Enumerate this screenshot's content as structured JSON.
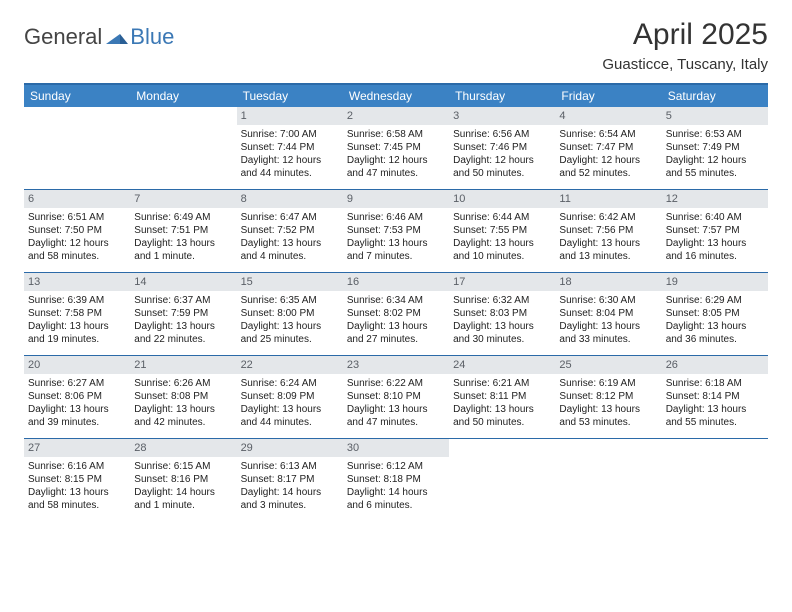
{
  "logo": {
    "part1": "General",
    "part2": "Blue"
  },
  "title": "April 2025",
  "subtitle": "Guasticce, Tuscany, Italy",
  "colors": {
    "header_bg": "#3b82c4",
    "rule": "#2b6aa8",
    "daynum_bg": "#e4e7ea",
    "logo_blue": "#3b78b5"
  },
  "dow": [
    "Sunday",
    "Monday",
    "Tuesday",
    "Wednesday",
    "Thursday",
    "Friday",
    "Saturday"
  ],
  "weeks": [
    [
      {
        "n": "",
        "sr": "",
        "ss": "",
        "dl": ""
      },
      {
        "n": "",
        "sr": "",
        "ss": "",
        "dl": ""
      },
      {
        "n": "1",
        "sr": "Sunrise: 7:00 AM",
        "ss": "Sunset: 7:44 PM",
        "dl": "Daylight: 12 hours and 44 minutes."
      },
      {
        "n": "2",
        "sr": "Sunrise: 6:58 AM",
        "ss": "Sunset: 7:45 PM",
        "dl": "Daylight: 12 hours and 47 minutes."
      },
      {
        "n": "3",
        "sr": "Sunrise: 6:56 AM",
        "ss": "Sunset: 7:46 PM",
        "dl": "Daylight: 12 hours and 50 minutes."
      },
      {
        "n": "4",
        "sr": "Sunrise: 6:54 AM",
        "ss": "Sunset: 7:47 PM",
        "dl": "Daylight: 12 hours and 52 minutes."
      },
      {
        "n": "5",
        "sr": "Sunrise: 6:53 AM",
        "ss": "Sunset: 7:49 PM",
        "dl": "Daylight: 12 hours and 55 minutes."
      }
    ],
    [
      {
        "n": "6",
        "sr": "Sunrise: 6:51 AM",
        "ss": "Sunset: 7:50 PM",
        "dl": "Daylight: 12 hours and 58 minutes."
      },
      {
        "n": "7",
        "sr": "Sunrise: 6:49 AM",
        "ss": "Sunset: 7:51 PM",
        "dl": "Daylight: 13 hours and 1 minute."
      },
      {
        "n": "8",
        "sr": "Sunrise: 6:47 AM",
        "ss": "Sunset: 7:52 PM",
        "dl": "Daylight: 13 hours and 4 minutes."
      },
      {
        "n": "9",
        "sr": "Sunrise: 6:46 AM",
        "ss": "Sunset: 7:53 PM",
        "dl": "Daylight: 13 hours and 7 minutes."
      },
      {
        "n": "10",
        "sr": "Sunrise: 6:44 AM",
        "ss": "Sunset: 7:55 PM",
        "dl": "Daylight: 13 hours and 10 minutes."
      },
      {
        "n": "11",
        "sr": "Sunrise: 6:42 AM",
        "ss": "Sunset: 7:56 PM",
        "dl": "Daylight: 13 hours and 13 minutes."
      },
      {
        "n": "12",
        "sr": "Sunrise: 6:40 AM",
        "ss": "Sunset: 7:57 PM",
        "dl": "Daylight: 13 hours and 16 minutes."
      }
    ],
    [
      {
        "n": "13",
        "sr": "Sunrise: 6:39 AM",
        "ss": "Sunset: 7:58 PM",
        "dl": "Daylight: 13 hours and 19 minutes."
      },
      {
        "n": "14",
        "sr": "Sunrise: 6:37 AM",
        "ss": "Sunset: 7:59 PM",
        "dl": "Daylight: 13 hours and 22 minutes."
      },
      {
        "n": "15",
        "sr": "Sunrise: 6:35 AM",
        "ss": "Sunset: 8:00 PM",
        "dl": "Daylight: 13 hours and 25 minutes."
      },
      {
        "n": "16",
        "sr": "Sunrise: 6:34 AM",
        "ss": "Sunset: 8:02 PM",
        "dl": "Daylight: 13 hours and 27 minutes."
      },
      {
        "n": "17",
        "sr": "Sunrise: 6:32 AM",
        "ss": "Sunset: 8:03 PM",
        "dl": "Daylight: 13 hours and 30 minutes."
      },
      {
        "n": "18",
        "sr": "Sunrise: 6:30 AM",
        "ss": "Sunset: 8:04 PM",
        "dl": "Daylight: 13 hours and 33 minutes."
      },
      {
        "n": "19",
        "sr": "Sunrise: 6:29 AM",
        "ss": "Sunset: 8:05 PM",
        "dl": "Daylight: 13 hours and 36 minutes."
      }
    ],
    [
      {
        "n": "20",
        "sr": "Sunrise: 6:27 AM",
        "ss": "Sunset: 8:06 PM",
        "dl": "Daylight: 13 hours and 39 minutes."
      },
      {
        "n": "21",
        "sr": "Sunrise: 6:26 AM",
        "ss": "Sunset: 8:08 PM",
        "dl": "Daylight: 13 hours and 42 minutes."
      },
      {
        "n": "22",
        "sr": "Sunrise: 6:24 AM",
        "ss": "Sunset: 8:09 PM",
        "dl": "Daylight: 13 hours and 44 minutes."
      },
      {
        "n": "23",
        "sr": "Sunrise: 6:22 AM",
        "ss": "Sunset: 8:10 PM",
        "dl": "Daylight: 13 hours and 47 minutes."
      },
      {
        "n": "24",
        "sr": "Sunrise: 6:21 AM",
        "ss": "Sunset: 8:11 PM",
        "dl": "Daylight: 13 hours and 50 minutes."
      },
      {
        "n": "25",
        "sr": "Sunrise: 6:19 AM",
        "ss": "Sunset: 8:12 PM",
        "dl": "Daylight: 13 hours and 53 minutes."
      },
      {
        "n": "26",
        "sr": "Sunrise: 6:18 AM",
        "ss": "Sunset: 8:14 PM",
        "dl": "Daylight: 13 hours and 55 minutes."
      }
    ],
    [
      {
        "n": "27",
        "sr": "Sunrise: 6:16 AM",
        "ss": "Sunset: 8:15 PM",
        "dl": "Daylight: 13 hours and 58 minutes."
      },
      {
        "n": "28",
        "sr": "Sunrise: 6:15 AM",
        "ss": "Sunset: 8:16 PM",
        "dl": "Daylight: 14 hours and 1 minute."
      },
      {
        "n": "29",
        "sr": "Sunrise: 6:13 AM",
        "ss": "Sunset: 8:17 PM",
        "dl": "Daylight: 14 hours and 3 minutes."
      },
      {
        "n": "30",
        "sr": "Sunrise: 6:12 AM",
        "ss": "Sunset: 8:18 PM",
        "dl": "Daylight: 14 hours and 6 minutes."
      },
      {
        "n": "",
        "sr": "",
        "ss": "",
        "dl": ""
      },
      {
        "n": "",
        "sr": "",
        "ss": "",
        "dl": ""
      },
      {
        "n": "",
        "sr": "",
        "ss": "",
        "dl": ""
      }
    ]
  ]
}
